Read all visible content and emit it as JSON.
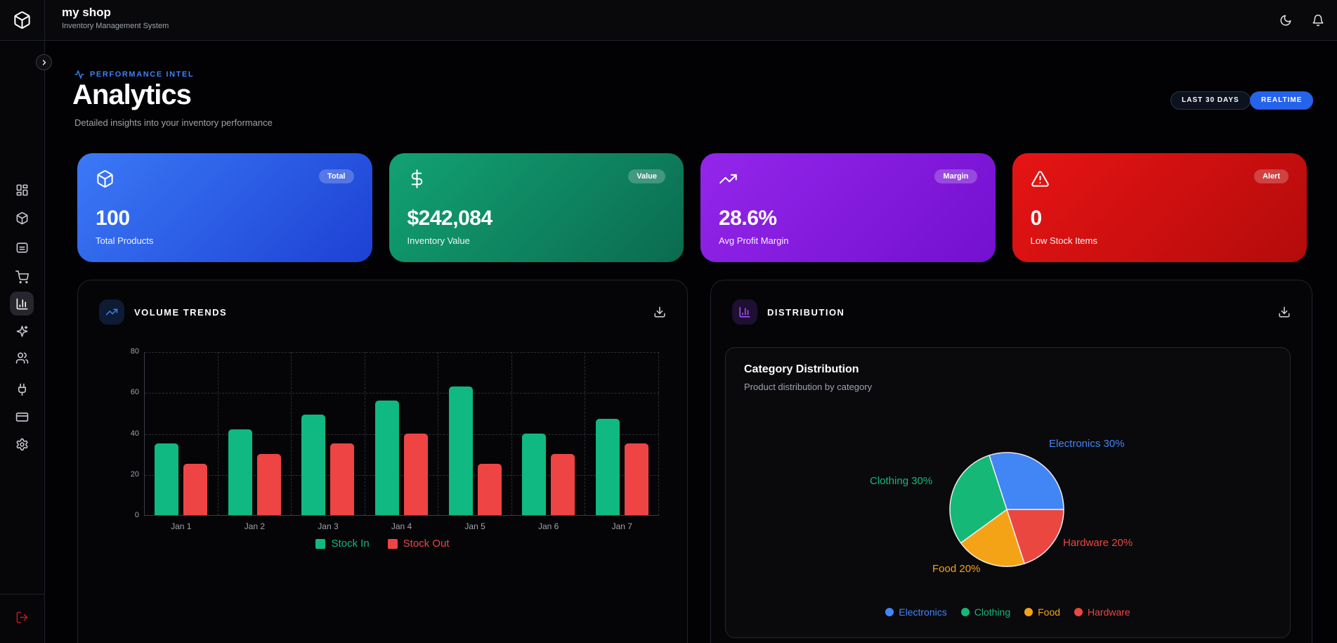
{
  "app": {
    "name": "my shop",
    "subtitle": "Inventory Management System"
  },
  "topbar": {
    "icons": [
      "moon-icon",
      "bell-icon"
    ]
  },
  "sidebar": {
    "items": [
      {
        "icon": "dashboard"
      },
      {
        "icon": "package"
      },
      {
        "icon": "warehouse"
      },
      {
        "icon": "shopping-cart"
      },
      {
        "icon": "bar-chart",
        "active": true
      },
      {
        "icon": "sparkles"
      },
      {
        "icon": "users"
      },
      {
        "icon": "plug"
      },
      {
        "icon": "credit-card"
      },
      {
        "icon": "settings"
      }
    ],
    "footer_icon": "log-out",
    "expand_icon": "chevron-right"
  },
  "page": {
    "eyebrow": "PERFORMANCE INTEL",
    "title": "Analytics",
    "subtitle": "Detailed insights into your inventory performance",
    "range_pill": "LAST 30 DAYS",
    "live_pill": "REALTIME"
  },
  "stats": [
    {
      "icon": "package-icon",
      "badge": "Total",
      "value": "100",
      "label": "Total Products",
      "gradient_from": "#3b79f6",
      "gradient_to": "#1d41d4"
    },
    {
      "icon": "dollar-icon",
      "badge": "Value",
      "value": "$242,084",
      "label": "Inventory Value",
      "gradient_from": "#12a273",
      "gradient_to": "#0b6b4f"
    },
    {
      "icon": "trending-up-icon",
      "badge": "Margin",
      "value": "28.6%",
      "label": "Avg Profit Margin",
      "gradient_from": "#9326ea",
      "gradient_to": "#7410cf"
    },
    {
      "icon": "alert-triangle-icon",
      "badge": "Alert",
      "value": "0",
      "label": "Low Stock Items",
      "gradient_from": "#e71414",
      "gradient_to": "#b40b0b"
    }
  ],
  "volume_card": {
    "title": "VOLUME TRENDS"
  },
  "distribution_card": {
    "title": "DISTRIBUTION",
    "inner_title": "Category Distribution",
    "inner_subtitle": "Product distribution by category"
  },
  "chart_data": [
    {
      "type": "bar",
      "title": "Volume Trends",
      "categories": [
        "Jan 1",
        "Jan 2",
        "Jan 3",
        "Jan 4",
        "Jan 5",
        "Jan 6",
        "Jan 7"
      ],
      "series": [
        {
          "name": "Stock In",
          "color": "#10b981",
          "values": [
            35,
            42,
            49,
            56,
            63,
            40,
            47
          ]
        },
        {
          "name": "Stock Out",
          "color": "#ef4444",
          "values": [
            25,
            30,
            35,
            40,
            25,
            30,
            35
          ]
        }
      ],
      "xlabel": "",
      "ylabel": "",
      "ylim": [
        0,
        80
      ],
      "yticks": [
        0,
        20,
        40,
        60,
        80
      ],
      "grid": "dashed",
      "legend_position": "bottom"
    },
    {
      "type": "pie",
      "title": "Category Distribution",
      "categories": [
        "Electronics",
        "Clothing",
        "Food",
        "Hardware"
      ],
      "values": [
        30,
        30,
        20,
        20
      ],
      "colors": [
        "#4285f4",
        "#16b877",
        "#f5a316",
        "#ea4740"
      ],
      "labels": [
        "Electronics 30%",
        "Clothing 30%",
        "Food 20%",
        "Hardware 20%"
      ],
      "start_angle_deg": -18,
      "draw_order": [
        "Electronics",
        "Hardware",
        "Food",
        "Clothing"
      ],
      "stroke_color": "#ededed",
      "legend_position": "bottom"
    }
  ]
}
